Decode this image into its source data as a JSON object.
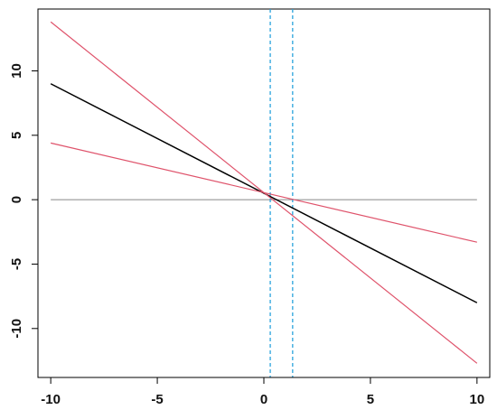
{
  "chart_data": {
    "type": "line",
    "title": "",
    "xlabel": "",
    "ylabel": "",
    "xlim": [
      -10.6,
      10.6
    ],
    "ylim": [
      -13.8,
      14.8
    ],
    "x_ticks": [
      -10,
      -5,
      0,
      5,
      10
    ],
    "x_tick_labels": [
      "-10",
      "-5",
      "0",
      "5",
      "10"
    ],
    "y_ticks": [
      -10,
      -5,
      0,
      5,
      10
    ],
    "y_tick_labels": [
      "-10",
      "-5",
      "0",
      "5",
      "10"
    ],
    "grid": false,
    "legend": false,
    "series": [
      {
        "color": "#000000",
        "style": "solid",
        "x": [
          -10,
          10
        ],
        "y": [
          9.0,
          -8.0
        ]
      },
      {
        "color": "#df536b",
        "style": "solid",
        "x": [
          -10,
          10
        ],
        "y": [
          13.8,
          -12.7
        ]
      },
      {
        "color": "#df536b",
        "style": "solid",
        "x": [
          -10,
          10
        ],
        "y": [
          4.4,
          -3.3
        ]
      }
    ],
    "reference_lines": [
      {
        "orientation": "horizontal",
        "value": 0,
        "from": -10,
        "to": 10,
        "color": "#888888",
        "style": "solid"
      },
      {
        "orientation": "vertical",
        "value": 0.3,
        "color": "#29a3dc",
        "style": "dashed"
      },
      {
        "orientation": "vertical",
        "value": 1.35,
        "color": "#29a3dc",
        "style": "dashed"
      }
    ]
  }
}
